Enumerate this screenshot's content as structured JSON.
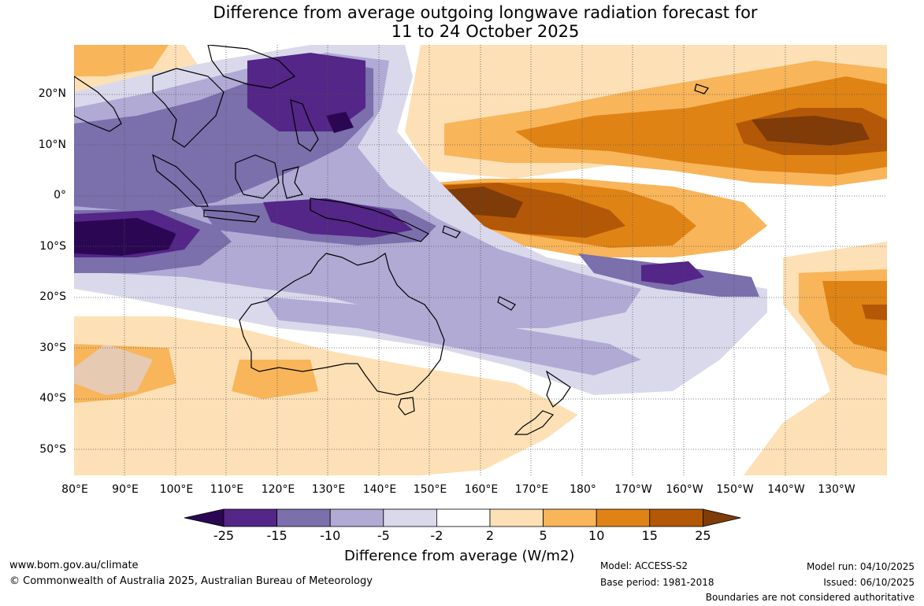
{
  "title": {
    "line1": "Difference from average outgoing longwave radiation forecast for",
    "line2": "11 to 24 October 2025"
  },
  "map": {
    "projection": "equirectangular",
    "lon_range": "80°E to 160°W+",
    "lat_labels": [
      "20°N",
      "10°N",
      "0°",
      "10°S",
      "20°S",
      "30°S",
      "40°S",
      "50°S"
    ],
    "lon_labels": [
      "80°E",
      "90°E",
      "100°E",
      "110°E",
      "120°E",
      "130°E",
      "140°E",
      "150°E",
      "160°E",
      "170°E",
      "180°",
      "170°W",
      "160°W",
      "150°W",
      "140°W",
      "130°W"
    ]
  },
  "colorbar": {
    "labels": [
      "-25",
      "-15",
      "-10",
      "-5",
      "-2",
      "2",
      "5",
      "10",
      "15",
      "25"
    ],
    "colors": [
      "#2b0753",
      "#532687",
      "#7b6fac",
      "#b0aad4",
      "#dad9ec",
      "#ffffff",
      "#fde0b5",
      "#f8b55a",
      "#e08315",
      "#b35806",
      "#7f3b08"
    ],
    "title": "Difference from average (W/m2)"
  },
  "footer": {
    "website": "www.bom.gov.au/climate",
    "copyright": "© Commonwealth of Australia 2025, Australian Bureau of Meteorology",
    "model": "Model: ACCESS-S2",
    "base_period": "Base period: 1981-2018",
    "model_run": "Model run: 04/10/2025",
    "issued": "Issued: 06/10/2025",
    "disclaimer": "Boundaries are not considered authoritative"
  }
}
